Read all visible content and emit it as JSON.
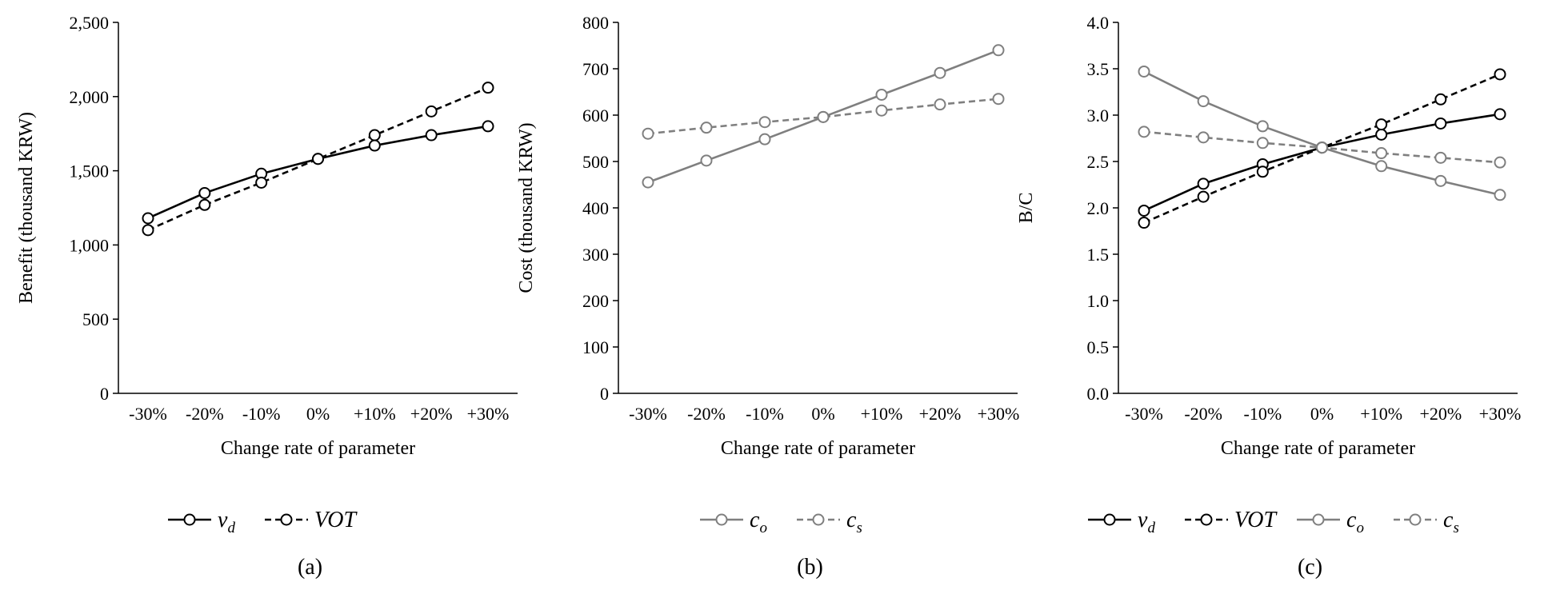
{
  "colors": {
    "black": "#000000",
    "gray": "#7f7f7f"
  },
  "chart_data": [
    {
      "type": "line",
      "panel_label": "(a)",
      "categories": [
        "-30%",
        "-20%",
        "-10%",
        "0%",
        "+10%",
        "+20%",
        "+30%"
      ],
      "xlabel": "Change rate of parameter",
      "ylabel": "Benefit (thousand KRW)",
      "ylim": [
        0,
        2500
      ],
      "yticks": [
        0,
        500,
        1000,
        1500,
        2000,
        2500
      ],
      "yticklabels": [
        "0",
        "500",
        "1,000",
        "1,500",
        "2,000",
        "2,500"
      ],
      "legend_position": "bottom",
      "grid": false,
      "series": [
        {
          "name": "v_d",
          "legend_main": "v",
          "legend_sub": "d",
          "color": "#000000",
          "dash": "solid",
          "values": [
            1180,
            1350,
            1480,
            1580,
            1670,
            1740,
            1800
          ]
        },
        {
          "name": "VOT",
          "legend_main": "VOT",
          "legend_sub": "",
          "color": "#000000",
          "dash": "dashed",
          "values": [
            1100,
            1270,
            1420,
            1580,
            1740,
            1900,
            2060
          ]
        }
      ]
    },
    {
      "type": "line",
      "panel_label": "(b)",
      "categories": [
        "-30%",
        "-20%",
        "-10%",
        "0%",
        "+10%",
        "+20%",
        "+30%"
      ],
      "xlabel": "Change rate of parameter",
      "ylabel": "Cost (thousand KRW)",
      "ylim": [
        0,
        800
      ],
      "yticks": [
        0,
        100,
        200,
        300,
        400,
        500,
        600,
        700,
        800
      ],
      "yticklabels": [
        "0",
        "100",
        "200",
        "300",
        "400",
        "500",
        "600",
        "700",
        "800"
      ],
      "legend_position": "bottom",
      "grid": false,
      "series": [
        {
          "name": "c_o",
          "legend_main": "c",
          "legend_sub": "o",
          "color": "#7f7f7f",
          "dash": "solid",
          "values": [
            455,
            502,
            548,
            596,
            644,
            691,
            740
          ]
        },
        {
          "name": "c_s",
          "legend_main": "c",
          "legend_sub": "s",
          "color": "#7f7f7f",
          "dash": "dashed",
          "values": [
            560,
            573,
            585,
            596,
            610,
            623,
            635
          ]
        }
      ]
    },
    {
      "type": "line",
      "panel_label": "(c)",
      "categories": [
        "-30%",
        "-20%",
        "-10%",
        "0%",
        "+10%",
        "+20%",
        "+30%"
      ],
      "xlabel": "Change rate of parameter",
      "ylabel": "B/C",
      "ylim": [
        0,
        4
      ],
      "yticks": [
        0,
        0.5,
        1,
        1.5,
        2,
        2.5,
        3,
        3.5,
        4
      ],
      "yticklabels": [
        "0.0",
        "0.5",
        "1.0",
        "1.5",
        "2.0",
        "2.5",
        "3.0",
        "3.5",
        "4.0"
      ],
      "legend_position": "bottom",
      "grid": false,
      "series": [
        {
          "name": "v_d",
          "legend_main": "v",
          "legend_sub": "d",
          "color": "#000000",
          "dash": "solid",
          "values": [
            1.97,
            2.26,
            2.47,
            2.65,
            2.79,
            2.91,
            3.01
          ]
        },
        {
          "name": "VOT",
          "legend_main": "VOT",
          "legend_sub": "",
          "color": "#000000",
          "dash": "dashed",
          "values": [
            1.84,
            2.12,
            2.39,
            2.65,
            2.9,
            3.17,
            3.44
          ]
        },
        {
          "name": "c_o",
          "legend_main": "c",
          "legend_sub": "o",
          "color": "#7f7f7f",
          "dash": "solid",
          "values": [
            3.47,
            3.15,
            2.88,
            2.65,
            2.45,
            2.29,
            2.14
          ]
        },
        {
          "name": "c_s",
          "legend_main": "c",
          "legend_sub": "s",
          "color": "#7f7f7f",
          "dash": "dashed",
          "values": [
            2.82,
            2.76,
            2.7,
            2.65,
            2.59,
            2.54,
            2.49
          ]
        }
      ]
    }
  ]
}
